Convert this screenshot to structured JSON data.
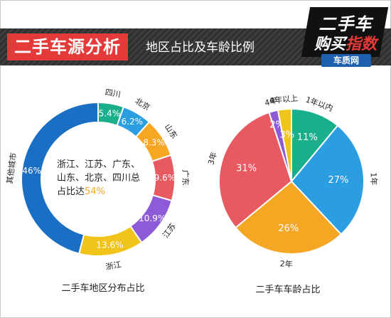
{
  "header": {
    "title": "二手车源分析",
    "subtitle": "地区占比及车龄比例"
  },
  "logo": {
    "line1": "二手车",
    "line2_a": "购买",
    "line2_b": "指数",
    "badge": "车质网"
  },
  "chart_data": [
    {
      "type": "pie",
      "variant": "donut",
      "caption": "二手车地区分布占比",
      "slices": [
        {
          "label": "四川",
          "value": 5.4,
          "value_text": "5.4%",
          "color": "#1aaf8b"
        },
        {
          "label": "北京",
          "value": 6.2,
          "value_text": "6.2%",
          "color": "#2a9ee0"
        },
        {
          "label": "山东",
          "value": 8.3,
          "value_text": "8.3%",
          "color": "#f5a623"
        },
        {
          "label": "广东",
          "value": 9.6,
          "value_text": "9.6%",
          "color": "#e85a62"
        },
        {
          "label": "江苏",
          "value": 10.9,
          "value_text": "10.9%",
          "color": "#8d5ad8"
        },
        {
          "label": "浙江",
          "value": 13.6,
          "value_text": "13.6%",
          "color": "#f0c419"
        },
        {
          "label": "其他城市",
          "value": 46,
          "value_text": "46%",
          "color": "#1a6fc4"
        }
      ],
      "center_text": "浙江、江苏、广东、山东、北京、四川总占比达",
      "center_value": "54%"
    },
    {
      "type": "pie",
      "caption": "二手车车龄占比",
      "slices": [
        {
          "label": "1年以内",
          "value": 11,
          "value_text": "11%",
          "color": "#1aaf8b"
        },
        {
          "label": "1年",
          "value": 27,
          "value_text": "27%",
          "color": "#2a9ee0"
        },
        {
          "label": "2年",
          "value": 26,
          "value_text": "26%",
          "color": "#f5a623"
        },
        {
          "label": "3年",
          "value": 31,
          "value_text": "31%",
          "color": "#e85a62"
        },
        {
          "label": "4年",
          "value": 2,
          "value_text": "2%",
          "color": "#8d5ad8"
        },
        {
          "label": "4年以上",
          "value": 3,
          "value_text": "3%",
          "color": "#f0c419"
        }
      ]
    }
  ]
}
